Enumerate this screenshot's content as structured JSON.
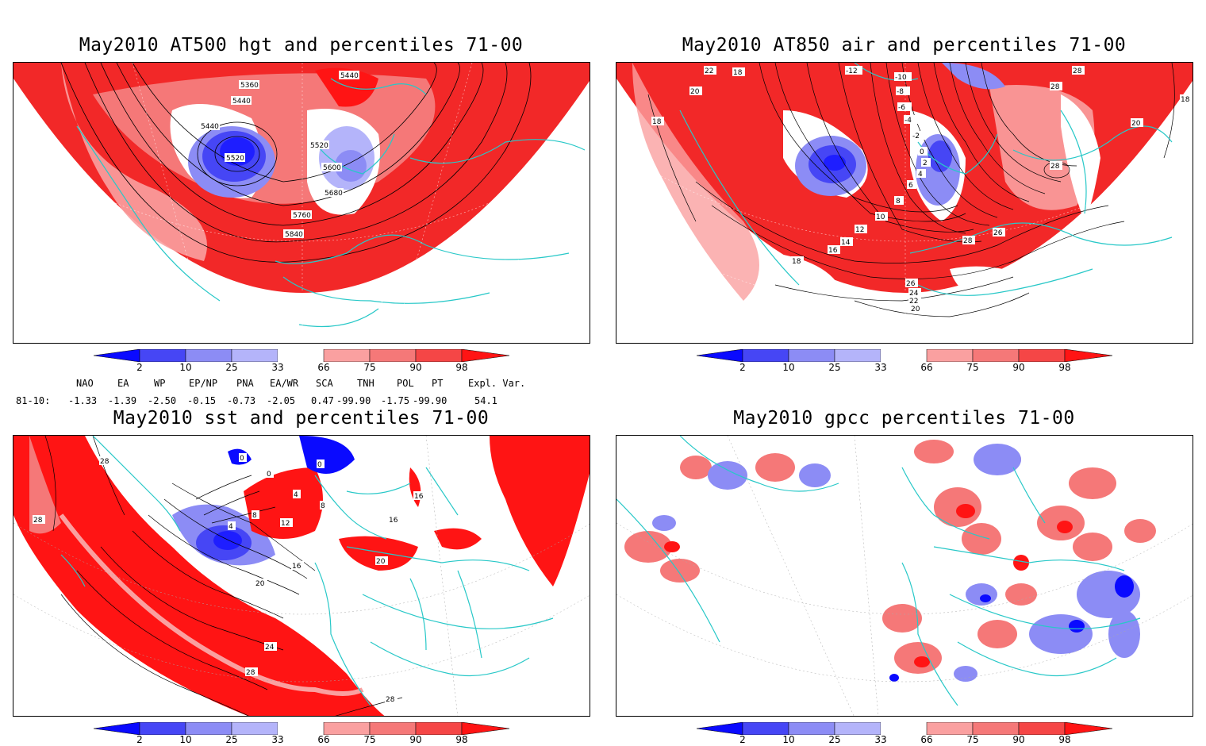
{
  "panels": [
    {
      "id": "hgt500",
      "title": "May2010 AT500 hgt and percentiles 71-00",
      "contour_labels": [
        "5360",
        "5440",
        "5440",
        "5440",
        "5520",
        "5520",
        "5600",
        "5680",
        "5760",
        "5840"
      ]
    },
    {
      "id": "air850",
      "title": "May2010 AT850 air and percentiles 71-00",
      "contour_labels": [
        "22",
        "18",
        "20",
        "18",
        "-12",
        "-10",
        "-8",
        "-6",
        "-4",
        "-2",
        "0",
        "2",
        "4",
        "6",
        "8",
        "10",
        "12",
        "14",
        "16",
        "18",
        "28",
        "28",
        "28",
        "20",
        "18",
        "26",
        "28",
        "26",
        "24",
        "22",
        "20"
      ]
    },
    {
      "id": "sst",
      "title": "May2010 sst and percentiles 71-00",
      "contour_labels": [
        "28",
        "28",
        "0",
        "0",
        "0",
        "4",
        "4",
        "8",
        "8",
        "12",
        "16",
        "16",
        "16",
        "20",
        "20",
        "24",
        "28",
        "28"
      ]
    },
    {
      "id": "gpcc",
      "title": "May2010 gpcc percentiles 71-00",
      "contour_labels": []
    }
  ],
  "colorbar": {
    "ticks": [
      "2",
      "10",
      "25",
      "33",
      "66",
      "75",
      "90",
      "98"
    ],
    "colors": {
      "blue_strong": "#0a0aff",
      "blue_mid": "#4646f5",
      "blue_light": "#8c8cf5",
      "blue_pale": "#b4b4fa",
      "red_pale": "#faa0a0",
      "red_light": "#f57878",
      "red_mid": "#f54646",
      "red_strong": "#ff1414"
    }
  },
  "indices": {
    "headers": [
      "NAO",
      "EA",
      "WP",
      "EP/NP",
      "PNA",
      "EA/WR",
      "SCA",
      "TNH",
      "POL",
      "PT",
      "Expl. Var."
    ],
    "row_label": "81-10:",
    "values": [
      "-1.33",
      "-1.39",
      "-2.50",
      "-0.15",
      "-0.73",
      "-2.05",
      "0.47",
      "-99.90",
      "-1.75",
      "-99.90",
      "54.1"
    ]
  }
}
